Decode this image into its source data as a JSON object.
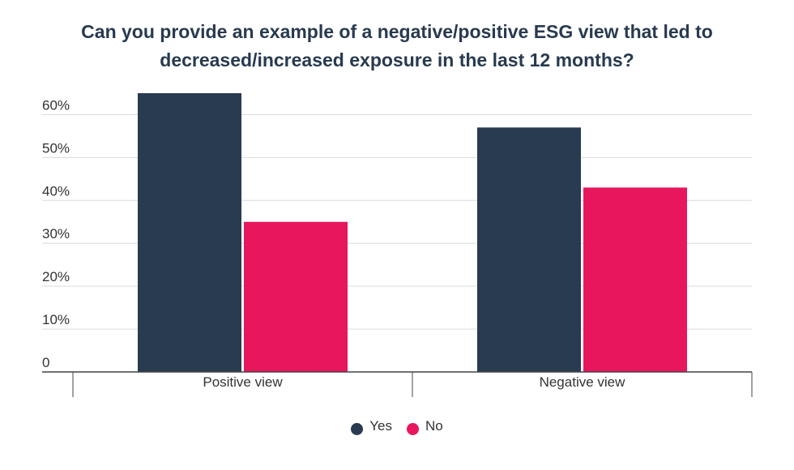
{
  "chart_data": {
    "type": "bar",
    "title_lines": [
      "Can you provide an example of a negative/positive ESG view that led to",
      "decreased/increased exposure in the last 12 months?"
    ],
    "categories": [
      "Positive view",
      "Negative view"
    ],
    "series": [
      {
        "name": "Yes",
        "color": "#283b50",
        "values": [
          65,
          57
        ]
      },
      {
        "name": "No",
        "color": "#e8175d",
        "values": [
          35,
          43
        ]
      }
    ],
    "y_ticks": [
      0,
      10,
      20,
      30,
      40,
      50,
      60
    ],
    "y_tick_labels": [
      "0",
      "10%",
      "20%",
      "30%",
      "40%",
      "50%",
      "60%"
    ],
    "ylim": [
      0,
      65
    ],
    "grid": true,
    "legend_position": "bottom-center"
  }
}
